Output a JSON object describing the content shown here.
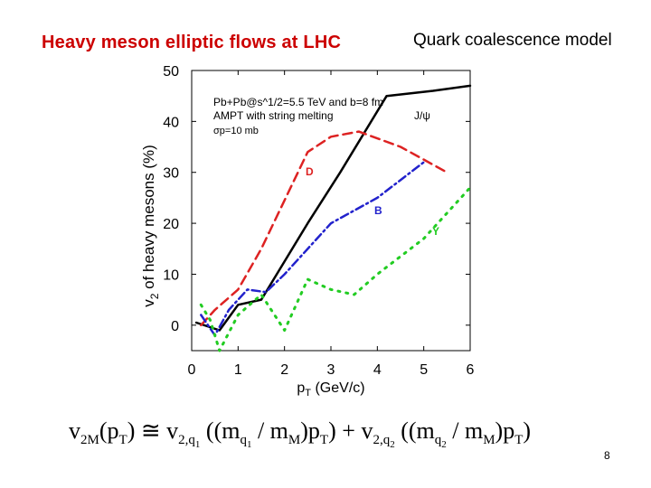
{
  "slide": {
    "title": "Heavy meson elliptic flows at LHC",
    "subtitle": "Quark coalescence model",
    "page_number": "8",
    "equation": {
      "lhs": "v",
      "lhs_sub": "2M",
      "arg": "(p",
      "arg_sub": "T",
      "arg_close": ")",
      "approx": " ≅ ",
      "v1": "v",
      "v1_sub": "2,q",
      "v1_subsub": "1",
      "t1_open": " ((m",
      "t1_mq_sub": "q",
      "t1_mq_subsub": "1",
      "t1_div": " / m",
      "t1_mm_sub": "M",
      "t1_close": ")p",
      "t1_pt_sub": "T",
      "t1_end": ")",
      "plus": " + ",
      "v2": "v",
      "v2_sub": "2,q",
      "v2_subsub": "2",
      "t2_open": " ((m",
      "t2_mq_sub": "q",
      "t2_mq_subsub": "2",
      "t2_div": " / m",
      "t2_mm_sub": "M",
      "t2_close": ")p",
      "t2_pt_sub": "T",
      "t2_end": ")"
    }
  },
  "chart_data": {
    "type": "line",
    "ylabel": "v",
    "ylabel_sub": "2",
    "ylabel_rest": " of heavy mesons (%)",
    "xlabel": "p",
    "xlabel_sub": "T",
    "xlabel_rest": " (GeV/c)",
    "xlim": [
      0,
      6
    ],
    "ylim": [
      -5,
      50
    ],
    "xticks": [
      "0",
      "1",
      "2",
      "3",
      "4",
      "5",
      "6"
    ],
    "yticks": [
      "0",
      "10",
      "20",
      "30",
      "40",
      "50"
    ],
    "grid": false,
    "info_lines": [
      "Pb+Pb@s^1/2=5.5 TeV and b=8 fm",
      "AMPT with string melting",
      "σp=10 mb"
    ],
    "series": [
      {
        "name": "J/ψ",
        "color": "#000000",
        "style": "solid",
        "x": [
          0.1,
          0.6,
          1.0,
          1.5,
          2.5,
          3.2,
          4.2,
          5.2,
          6.0
        ],
        "y": [
          0.5,
          -1,
          4,
          5,
          20,
          30,
          45,
          46,
          47
        ]
      },
      {
        "name": "D",
        "color": "#dd2222",
        "style": "dashed",
        "x": [
          0.2,
          0.5,
          1.0,
          1.5,
          2.5,
          3.0,
          3.6,
          4.5,
          5.5
        ],
        "y": [
          0,
          3,
          7,
          15,
          34,
          37,
          38,
          35,
          30
        ]
      },
      {
        "name": "B",
        "color": "#2222cc",
        "style": "dashdot",
        "x": [
          0.2,
          0.5,
          0.8,
          1.2,
          1.6,
          2.0,
          3.0,
          4.0,
          5.0
        ],
        "y": [
          2,
          -2,
          3,
          7,
          6.5,
          10,
          20,
          25,
          32
        ]
      },
      {
        "name": "Υ",
        "color": "#22cc22",
        "style": "dotted",
        "x": [
          0.2,
          0.4,
          0.6,
          1.0,
          1.5,
          2.0,
          2.5,
          3.0,
          3.5,
          4.0,
          5.0,
          6.0
        ],
        "y": [
          4,
          1,
          -5,
          2,
          6,
          -1,
          9,
          7,
          6,
          10,
          17,
          27
        ]
      }
    ]
  }
}
